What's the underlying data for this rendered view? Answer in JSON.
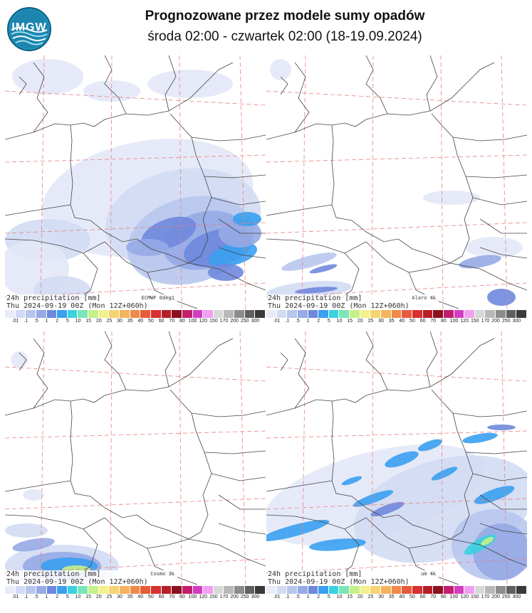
{
  "header": {
    "logo_text": "IMGW",
    "title": "Prognozowane przez modele sumy opadów",
    "subtitle": "środa 02:00 - czwartek 02:00 (18-19.09.2024)"
  },
  "panels": [
    {
      "id": "ecmwf",
      "caption_line1": "24h precipitation   [mm]",
      "caption_line2": "Thu 2024-09-19 00Z (Mon 12Z+060h)",
      "model": "ECMWF 0deg1"
    },
    {
      "id": "aladin",
      "caption_line1": "24h precipitation   [mm]",
      "caption_line2": "Thu 2024-09-19 00Z (Mon 12Z+060h)",
      "model": "Alaro 4k"
    },
    {
      "id": "cosmo",
      "caption_line1": "24h precipitation   [mm]",
      "caption_line2": "Thu 2024-09-19 00Z (Mon 12Z+060h)",
      "model": "Cosmo 3k"
    },
    {
      "id": "um",
      "caption_line1": "24h precipitation   [mm]",
      "caption_line2": "Thu 2024-09-19 00Z (Mon 12Z+060h)",
      "model": "um 4k"
    }
  ],
  "colorbar": {
    "labels": [
      ".01",
      ".1",
      ".5",
      "1",
      "2",
      "5",
      "10",
      "15",
      "20",
      "25",
      "30",
      "35",
      "40",
      "50",
      "60",
      "70",
      "80",
      "100",
      "120",
      "150",
      "170",
      "200",
      "250",
      "300"
    ],
    "colors": [
      "#e8ecf8",
      "#d2dbf3",
      "#b8c6ee",
      "#96aae6",
      "#6f88dd",
      "#3aa0f0",
      "#38d2e0",
      "#78e6b8",
      "#c6f08a",
      "#f4f08a",
      "#f6d470",
      "#f4b45a",
      "#f08a48",
      "#e85a3a",
      "#d63030",
      "#b81e26",
      "#8c1020",
      "#c21e6e",
      "#d43cc0",
      "#f0a0f0",
      "#d8d8d8",
      "#b8b8b8",
      "#8c8c8c",
      "#606060",
      "#3a3a3a"
    ]
  }
}
